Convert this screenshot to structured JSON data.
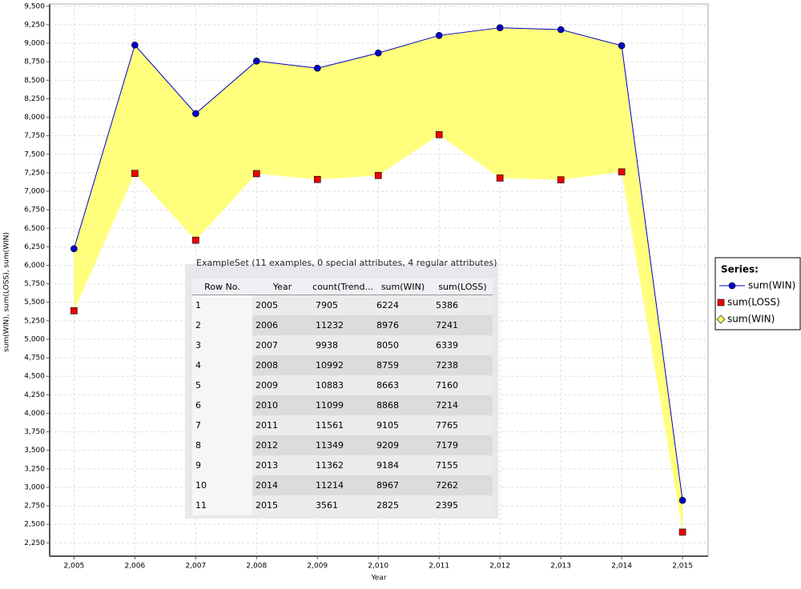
{
  "chart_data": {
    "type": "line",
    "title": null,
    "x_label": "Year",
    "y_label": "sum(WIN), sum(LOSS), sum(WIN)",
    "x": [
      2005,
      2006,
      2007,
      2008,
      2009,
      2010,
      2011,
      2012,
      2013,
      2014,
      2015
    ],
    "series": [
      {
        "name": "sum(WIN)",
        "color": "#0000cc",
        "marker": "circle",
        "values": [
          6224,
          8976,
          8050,
          8759,
          8663,
          8868,
          9105,
          9209,
          9184,
          8967,
          2825
        ]
      },
      {
        "name": "sum(LOSS)",
        "color": "#ee0000",
        "marker": "square",
        "values": [
          5386,
          7241,
          6339,
          7238,
          7160,
          7214,
          7765,
          7179,
          7155,
          7262,
          2395
        ]
      },
      {
        "name": "sum(WIN)",
        "color": "#ffff66",
        "marker": "diamond",
        "values": [
          6224,
          8976,
          8050,
          8759,
          8663,
          8868,
          9105,
          9209,
          9184,
          8967,
          2825
        ]
      }
    ],
    "legend_title": "Series:",
    "xlim": [
      2004.6,
      2015.42
    ],
    "ylim": [
      2070,
      9530
    ],
    "xticks": [
      {
        "value": 2005,
        "label": "2,005"
      },
      {
        "value": 2006,
        "label": "2,006"
      },
      {
        "value": 2007,
        "label": "2,007"
      },
      {
        "value": 2008,
        "label": "2,008"
      },
      {
        "value": 2009,
        "label": "2,009"
      },
      {
        "value": 2010,
        "label": "2,010"
      },
      {
        "value": 2011,
        "label": "2,011"
      },
      {
        "value": 2012,
        "label": "2,012"
      },
      {
        "value": 2013,
        "label": "2,013"
      },
      {
        "value": 2014,
        "label": "2,014"
      },
      {
        "value": 2015,
        "label": "2,015"
      }
    ],
    "yticks": [
      {
        "value": 2250,
        "label": "2,250"
      },
      {
        "value": 2500,
        "label": "2,500"
      },
      {
        "value": 2750,
        "label": "2,750"
      },
      {
        "value": 3000,
        "label": "3,000"
      },
      {
        "value": 3250,
        "label": "3,250"
      },
      {
        "value": 3500,
        "label": "3,500"
      },
      {
        "value": 3750,
        "label": "3,750"
      },
      {
        "value": 4000,
        "label": "4,000"
      },
      {
        "value": 4250,
        "label": "4,250"
      },
      {
        "value": 4500,
        "label": "4,500"
      },
      {
        "value": 4750,
        "label": "4,750"
      },
      {
        "value": 5000,
        "label": "5,000"
      },
      {
        "value": 5250,
        "label": "5,250"
      },
      {
        "value": 5500,
        "label": "5,500"
      },
      {
        "value": 5750,
        "label": "5,750"
      },
      {
        "value": 6000,
        "label": "6,000"
      },
      {
        "value": 6250,
        "label": "6,250"
      },
      {
        "value": 6500,
        "label": "6,500"
      },
      {
        "value": 6750,
        "label": "6,750"
      },
      {
        "value": 7000,
        "label": "7,000"
      },
      {
        "value": 7250,
        "label": "7,250"
      },
      {
        "value": 7500,
        "label": "7,500"
      },
      {
        "value": 7750,
        "label": "7,750"
      },
      {
        "value": 8000,
        "label": "8,000"
      },
      {
        "value": 8250,
        "label": "8,250"
      },
      {
        "value": 8500,
        "label": "8,500"
      },
      {
        "value": 8750,
        "label": "8,750"
      },
      {
        "value": 9000,
        "label": "9,000"
      },
      {
        "value": 9250,
        "label": "9,250"
      },
      {
        "value": 9500,
        "label": "9,500"
      }
    ],
    "grid": true
  },
  "table": {
    "title": "ExampleSet (11 examples, 0 special attributes, 4 regular attributes)",
    "columns": [
      "Row No.",
      "Year",
      "count(Trend...",
      "sum(WIN)",
      "sum(LOSS)"
    ],
    "rows": [
      [
        1,
        2005,
        7905,
        6224,
        5386
      ],
      [
        2,
        2006,
        11232,
        8976,
        7241
      ],
      [
        3,
        2007,
        9938,
        8050,
        6339
      ],
      [
        4,
        2008,
        10992,
        8759,
        7238
      ],
      [
        5,
        2009,
        10883,
        8663,
        7160
      ],
      [
        6,
        2010,
        11099,
        8868,
        7214
      ],
      [
        7,
        2011,
        11561,
        9105,
        7765
      ],
      [
        8,
        2012,
        11349,
        9209,
        7179
      ],
      [
        9,
        2013,
        11362,
        9184,
        7155
      ],
      [
        10,
        2014,
        11214,
        8967,
        7262
      ],
      [
        11,
        2015,
        3561,
        2825,
        2395
      ]
    ]
  }
}
